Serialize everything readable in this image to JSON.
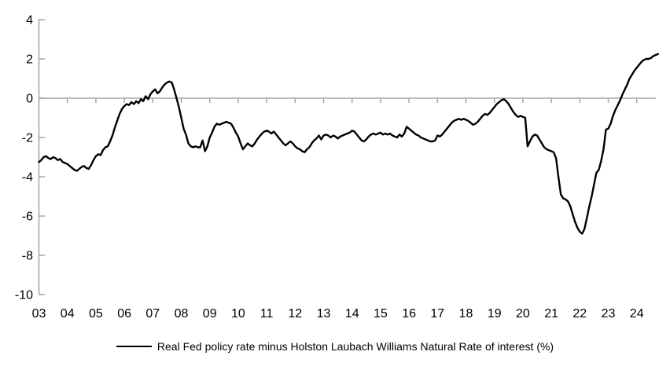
{
  "chart_data": {
    "type": "line",
    "legend": "Real Fed policy rate minus Holston Laubach Williams Natural Rate of interest (%)",
    "legend_position": "bottom",
    "grid": false,
    "zero_line": true,
    "axis_color": "#a6a6a6",
    "line_color": "#000000",
    "text_color": "#000000",
    "ylim": [
      -10,
      4
    ],
    "y_ticks": [
      4,
      2,
      0,
      -2,
      -4,
      -6,
      -8,
      -10
    ],
    "x_tick_years": [
      2003,
      2004,
      2005,
      2006,
      2007,
      2008,
      2009,
      2010,
      2011,
      2012,
      2013,
      2014,
      2015,
      2016,
      2017,
      2018,
      2019,
      2020,
      2021,
      2022,
      2023,
      2024
    ],
    "x_tick_labels": [
      "03",
      "04",
      "05",
      "06",
      "07",
      "08",
      "09",
      "10",
      "11",
      "12",
      "13",
      "14",
      "15",
      "16",
      "17",
      "18",
      "19",
      "20",
      "21",
      "22",
      "23",
      "24"
    ],
    "x_start_year": 2003,
    "x_step_years": 0.0833333,
    "series": [
      {
        "name": "Real Fed policy rate minus Holston Laubach Williams Natural Rate of interest (%)",
        "color": "#000000",
        "values": [
          -3.25,
          -3.15,
          -3.0,
          -2.95,
          -3.05,
          -3.1,
          -3.0,
          -3.05,
          -3.15,
          -3.1,
          -3.25,
          -3.3,
          -3.35,
          -3.45,
          -3.55,
          -3.65,
          -3.7,
          -3.6,
          -3.5,
          -3.45,
          -3.55,
          -3.6,
          -3.4,
          -3.15,
          -2.95,
          -2.85,
          -2.9,
          -2.65,
          -2.5,
          -2.45,
          -2.2,
          -1.9,
          -1.5,
          -1.15,
          -0.8,
          -0.55,
          -0.4,
          -0.3,
          -0.35,
          -0.2,
          -0.3,
          -0.15,
          -0.25,
          -0.05,
          -0.15,
          0.1,
          -0.05,
          0.2,
          0.35,
          0.45,
          0.25,
          0.35,
          0.55,
          0.7,
          0.8,
          0.85,
          0.8,
          0.45,
          0.0,
          -0.45,
          -1.0,
          -1.55,
          -1.85,
          -2.3,
          -2.45,
          -2.5,
          -2.45,
          -2.5,
          -2.5,
          -2.15,
          -2.7,
          -2.45,
          -2.0,
          -1.75,
          -1.45,
          -1.3,
          -1.35,
          -1.3,
          -1.25,
          -1.2,
          -1.25,
          -1.3,
          -1.5,
          -1.75,
          -1.95,
          -2.3,
          -2.6,
          -2.45,
          -2.3,
          -2.4,
          -2.45,
          -2.3,
          -2.1,
          -1.95,
          -1.8,
          -1.7,
          -1.65,
          -1.7,
          -1.8,
          -1.7,
          -1.85,
          -2.0,
          -2.15,
          -2.3,
          -2.4,
          -2.3,
          -2.2,
          -2.3,
          -2.45,
          -2.55,
          -2.6,
          -2.7,
          -2.75,
          -2.6,
          -2.5,
          -2.3,
          -2.15,
          -2.05,
          -1.9,
          -2.1,
          -1.9,
          -1.85,
          -1.9,
          -2.0,
          -1.9,
          -1.95,
          -2.05,
          -1.95,
          -1.9,
          -1.85,
          -1.8,
          -1.75,
          -1.65,
          -1.7,
          -1.85,
          -2.0,
          -2.15,
          -2.2,
          -2.1,
          -1.95,
          -1.85,
          -1.8,
          -1.85,
          -1.8,
          -1.75,
          -1.85,
          -1.8,
          -1.85,
          -1.8,
          -1.9,
          -1.95,
          -2.0,
          -1.85,
          -1.95,
          -1.8,
          -1.45,
          -1.55,
          -1.65,
          -1.75,
          -1.85,
          -1.9,
          -2.0,
          -2.05,
          -2.1,
          -2.15,
          -2.2,
          -2.2,
          -2.15,
          -1.9,
          -1.95,
          -1.85,
          -1.7,
          -1.55,
          -1.4,
          -1.25,
          -1.15,
          -1.1,
          -1.05,
          -1.1,
          -1.05,
          -1.1,
          -1.15,
          -1.25,
          -1.35,
          -1.3,
          -1.2,
          -1.05,
          -0.9,
          -0.8,
          -0.85,
          -0.75,
          -0.6,
          -0.45,
          -0.3,
          -0.2,
          -0.1,
          -0.05,
          -0.15,
          -0.3,
          -0.5,
          -0.7,
          -0.85,
          -0.95,
          -0.9,
          -0.95,
          -1.0,
          -2.45,
          -2.2,
          -1.95,
          -1.85,
          -1.9,
          -2.1,
          -2.3,
          -2.5,
          -2.6,
          -2.65,
          -2.7,
          -2.75,
          -3.05,
          -4.0,
          -4.9,
          -5.1,
          -5.15,
          -5.25,
          -5.5,
          -5.9,
          -6.3,
          -6.6,
          -6.8,
          -6.9,
          -6.65,
          -6.1,
          -5.5,
          -5.0,
          -4.4,
          -3.8,
          -3.65,
          -3.2,
          -2.6,
          -1.6,
          -1.55,
          -1.3,
          -0.9,
          -0.6,
          -0.35,
          -0.1,
          0.2,
          0.45,
          0.7,
          1.0,
          1.2,
          1.4,
          1.55,
          1.7,
          1.85,
          1.95,
          2.0,
          2.0,
          2.05,
          2.15,
          2.2,
          2.25
        ]
      }
    ]
  }
}
